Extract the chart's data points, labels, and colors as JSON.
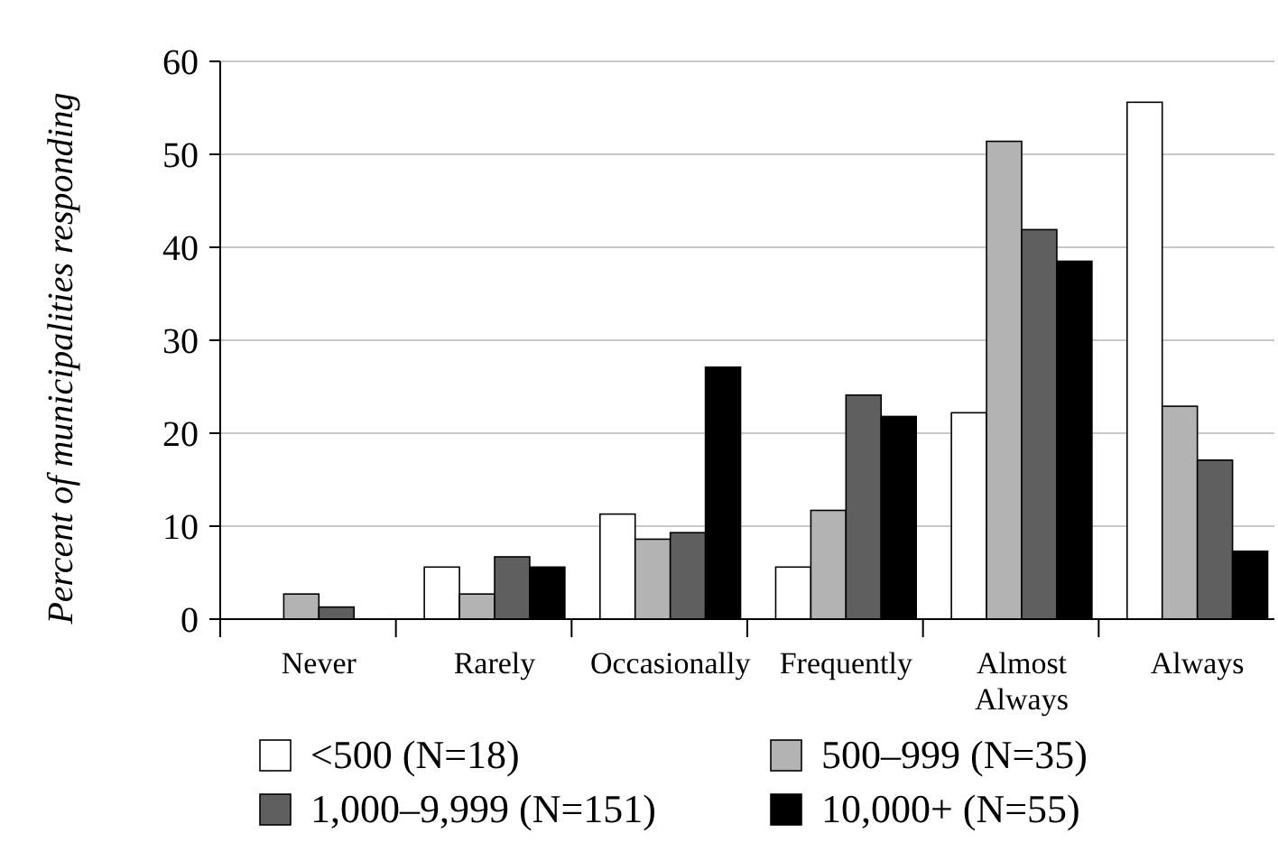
{
  "chart_data": {
    "type": "bar",
    "ylabel": "Percent of municipalities responding",
    "categories": [
      "Never",
      "Rarely",
      "Occasionally",
      "Frequently",
      "Almost Always",
      "Always"
    ],
    "series": [
      {
        "name": "<500 (N=18)",
        "color": "#ffffff",
        "values": [
          0,
          5.6,
          11.3,
          5.6,
          22.2,
          55.6
        ]
      },
      {
        "name": "500–999 (N=35)",
        "color": "#b3b3b3",
        "values": [
          2.7,
          2.7,
          8.6,
          11.7,
          51.4,
          22.9
        ]
      },
      {
        "name": "1,000–9,999 (N=151)",
        "color": "#5f5f5f",
        "values": [
          1.3,
          6.7,
          9.3,
          24.1,
          41.9,
          17.1
        ]
      },
      {
        "name": "10,000+ (N=55)",
        "color": "#000000",
        "values": [
          0,
          5.6,
          27.1,
          21.8,
          38.5,
          7.3
        ]
      }
    ],
    "ylim": [
      0,
      60
    ],
    "yticks": [
      0,
      10,
      20,
      30,
      40,
      50,
      60
    ],
    "grid": "y",
    "legend": "bottom"
  }
}
